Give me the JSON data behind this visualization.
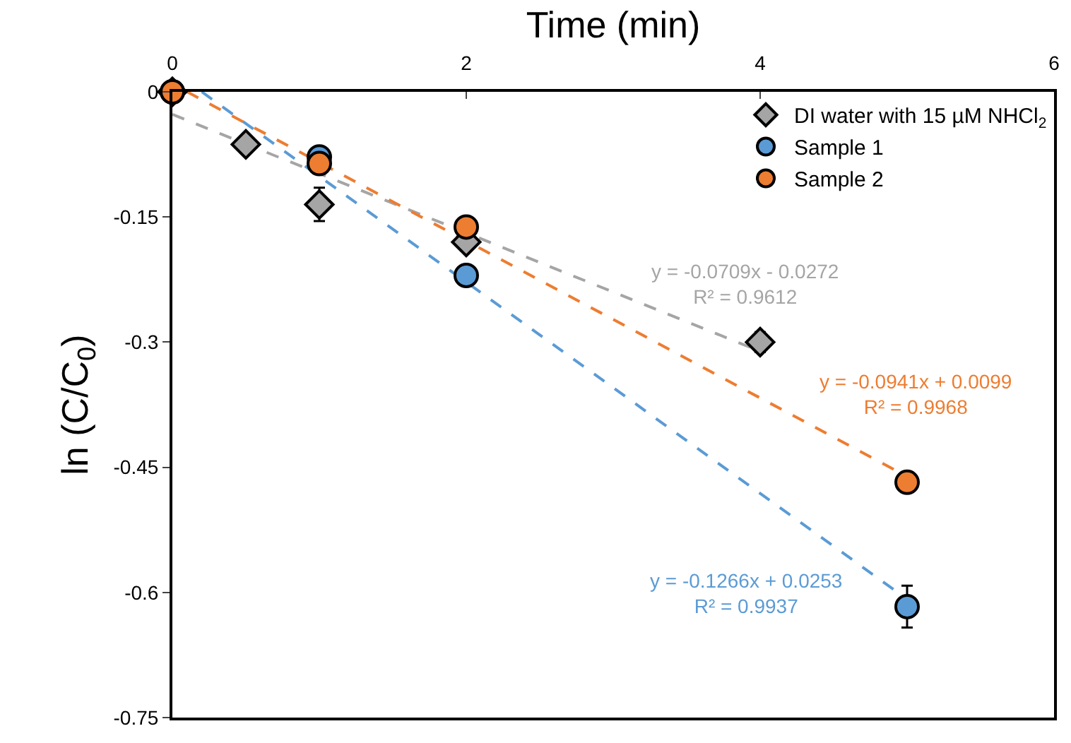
{
  "chart_data": {
    "type": "scatter",
    "xlabel": "Time (min)",
    "ylabel": "ln (C/C$_{0}$)",
    "xlim": [
      0,
      6
    ],
    "xticks": [
      0,
      2,
      4,
      6
    ],
    "ylim": [
      -0.75,
      0
    ],
    "yticks": [
      0,
      -0.15,
      -0.3,
      -0.45,
      -0.6,
      -0.75
    ],
    "legend": "top right",
    "series": [
      {
        "type": "line",
        "color": "#a5a5a5",
        "line_style": "dashed",
        "marker": "none",
        "x": [
          0,
          4
        ],
        "values": [
          -0.027,
          -0.311
        ]
      },
      {
        "type": "line",
        "color": "#ed7d31",
        "line_style": "dashed",
        "marker": "none",
        "x": [
          0.1,
          5
        ],
        "values": [
          0,
          -0.461
        ]
      },
      {
        "type": "line",
        "color": "#5b9bd5",
        "line_style": "dashed",
        "marker": "none",
        "x": [
          0.2,
          5
        ],
        "values": [
          0,
          -0.608
        ]
      },
      {
        "name": "DI water with 15 µM NHCl$_{2}$",
        "color": "#a5a5a5",
        "marker": "diamond",
        "x": [
          0,
          0.5,
          1,
          2,
          4
        ],
        "values": [
          0,
          -0.063,
          -0.135,
          -0.18,
          -0.3
        ],
        "errors": [
          null,
          null,
          0.02,
          null,
          0.012
        ]
      },
      {
        "name": "Sample 1",
        "color": "#5b9bd5",
        "marker": "circle",
        "x": [
          0,
          1,
          2,
          5
        ],
        "values": [
          0,
          -0.078,
          -0.22,
          -0.617
        ],
        "errors": [
          null,
          null,
          null,
          0.025
        ]
      },
      {
        "name": "Sample 2",
        "color": "#ed7d31",
        "marker": "circle",
        "x": [
          0,
          1,
          2,
          5
        ],
        "values": [
          0,
          -0.086,
          -0.162,
          -0.468
        ],
        "errors": [
          null,
          null,
          null,
          null
        ]
      }
    ],
    "annotations": [
      "y = -0.0709x - 0.0272\nR² = 0.9612",
      "y = -0.0941x + 0.0099\nR² = 0.9968",
      "y = -0.1266x + 0.0253\nR² = 0.9937"
    ]
  }
}
